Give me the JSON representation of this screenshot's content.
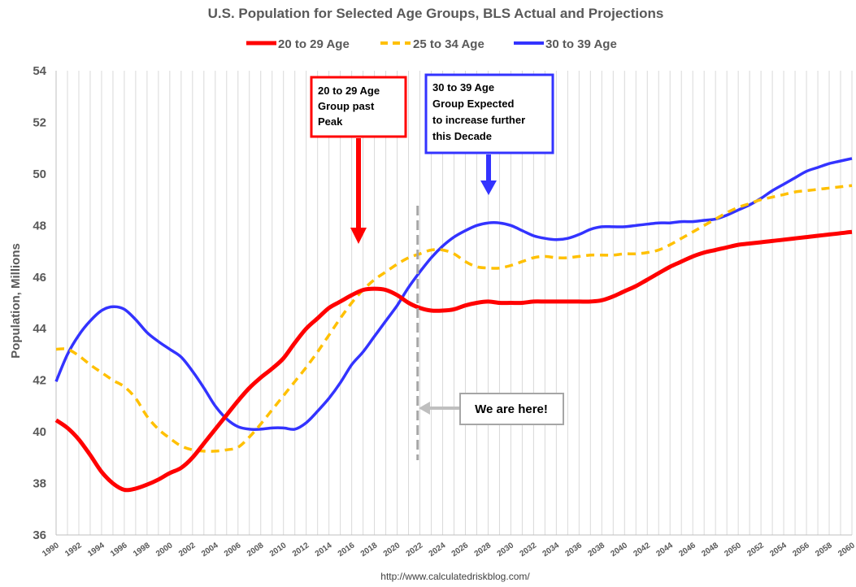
{
  "chart_data": {
    "type": "line",
    "title": "U.S. Population for Selected Age Groups, BLS Actual and Projections",
    "ylabel": "Population, Millions",
    "xlabel": "",
    "source": "http://www.calculatedriskblog.com/",
    "ylim": [
      36,
      54
    ],
    "yticks": [
      "36",
      "38",
      "40",
      "42",
      "44",
      "46",
      "48",
      "50",
      "52",
      "54"
    ],
    "xlim": [
      1990,
      2060
    ],
    "xticks": [
      "1990",
      "1992",
      "1994",
      "1996",
      "1998",
      "2000",
      "2002",
      "2004",
      "2006",
      "2008",
      "2010",
      "2012",
      "2014",
      "2016",
      "2018",
      "2020",
      "2022",
      "2024",
      "2026",
      "2028",
      "2030",
      "2032",
      "2034",
      "2036",
      "2038",
      "2040",
      "2042",
      "2044",
      "2046",
      "2048",
      "2050",
      "2052",
      "2054",
      "2056",
      "2058",
      "2060"
    ],
    "grid": "vertical",
    "legend_position": "top",
    "series": [
      {
        "name": "20 to 29 Age",
        "color": "#ff0000",
        "style": "solid",
        "x": [
          1990,
          1991,
          1992,
          1993,
          1994,
          1995,
          1996,
          1997,
          1998,
          1999,
          2000,
          2001,
          2002,
          2003,
          2004,
          2005,
          2006,
          2007,
          2008,
          2009,
          2010,
          2011,
          2012,
          2013,
          2014,
          2015,
          2016,
          2017,
          2018,
          2019,
          2020,
          2021,
          2022,
          2023,
          2024,
          2025,
          2026,
          2027,
          2028,
          2029,
          2030,
          2031,
          2032,
          2033,
          2034,
          2035,
          2036,
          2037,
          2038,
          2039,
          2040,
          2041,
          2042,
          2043,
          2044,
          2045,
          2046,
          2047,
          2048,
          2049,
          2050,
          2051,
          2052,
          2053,
          2054,
          2055,
          2056,
          2057,
          2058,
          2059,
          2060
        ],
        "values": [
          40.45,
          40.15,
          39.7,
          39.1,
          38.45,
          38.0,
          37.75,
          37.8,
          37.95,
          38.15,
          38.4,
          38.6,
          39.0,
          39.55,
          40.1,
          40.65,
          41.2,
          41.7,
          42.1,
          42.45,
          42.85,
          43.45,
          44.0,
          44.4,
          44.8,
          45.05,
          45.3,
          45.5,
          45.55,
          45.5,
          45.3,
          45.0,
          44.8,
          44.7,
          44.7,
          44.75,
          44.9,
          45.0,
          45.05,
          45.0,
          45.0,
          45.0,
          45.05,
          45.05,
          45.05,
          45.05,
          45.05,
          45.05,
          45.1,
          45.25,
          45.45,
          45.65,
          45.9,
          46.15,
          46.4,
          46.6,
          46.8,
          46.95,
          47.05,
          47.15,
          47.25,
          47.3,
          47.35,
          47.4,
          47.45,
          47.5,
          47.55,
          47.6,
          47.65,
          47.7,
          47.75
        ]
      },
      {
        "name": "25 to 34 Age",
        "color": "#ffc000",
        "style": "dashed",
        "x": [
          1990,
          1991,
          1992,
          1993,
          1994,
          1995,
          1996,
          1997,
          1998,
          1999,
          2000,
          2001,
          2002,
          2003,
          2004,
          2005,
          2006,
          2007,
          2008,
          2009,
          2010,
          2011,
          2012,
          2013,
          2014,
          2015,
          2016,
          2017,
          2018,
          2019,
          2020,
          2021,
          2022,
          2023,
          2024,
          2025,
          2026,
          2027,
          2028,
          2029,
          2030,
          2031,
          2032,
          2033,
          2034,
          2035,
          2036,
          2037,
          2038,
          2039,
          2040,
          2041,
          2042,
          2043,
          2044,
          2045,
          2046,
          2047,
          2048,
          2049,
          2050,
          2051,
          2052,
          2053,
          2054,
          2055,
          2056,
          2057,
          2058,
          2059,
          2060
        ],
        "values": [
          43.2,
          43.2,
          42.95,
          42.6,
          42.3,
          42.0,
          41.75,
          41.3,
          40.6,
          40.1,
          39.75,
          39.45,
          39.3,
          39.25,
          39.25,
          39.3,
          39.4,
          39.8,
          40.3,
          40.85,
          41.4,
          41.95,
          42.5,
          43.1,
          43.75,
          44.4,
          45.0,
          45.5,
          45.9,
          46.2,
          46.5,
          46.75,
          46.9,
          47.05,
          47.05,
          46.9,
          46.6,
          46.4,
          46.35,
          46.35,
          46.45,
          46.6,
          46.75,
          46.8,
          46.75,
          46.75,
          46.8,
          46.85,
          46.85,
          46.85,
          46.9,
          46.9,
          46.95,
          47.05,
          47.25,
          47.5,
          47.75,
          48.0,
          48.25,
          48.5,
          48.7,
          48.85,
          49.0,
          49.1,
          49.2,
          49.3,
          49.35,
          49.4,
          49.45,
          49.5,
          49.55
        ]
      },
      {
        "name": "30 to 39 Age",
        "color": "#3333ff",
        "style": "solid",
        "x": [
          1990,
          1991,
          1992,
          1993,
          1994,
          1995,
          1996,
          1997,
          1998,
          1999,
          2000,
          2001,
          2002,
          2003,
          2004,
          2005,
          2006,
          2007,
          2008,
          2009,
          2010,
          2011,
          2012,
          2013,
          2014,
          2015,
          2016,
          2017,
          2018,
          2019,
          2020,
          2021,
          2022,
          2023,
          2024,
          2025,
          2026,
          2027,
          2028,
          2029,
          2030,
          2031,
          2032,
          2033,
          2034,
          2035,
          2036,
          2037,
          2038,
          2039,
          2040,
          2041,
          2042,
          2043,
          2044,
          2045,
          2046,
          2047,
          2048,
          2049,
          2050,
          2051,
          2052,
          2053,
          2054,
          2055,
          2056,
          2057,
          2058,
          2059,
          2060
        ],
        "values": [
          41.95,
          43.0,
          43.75,
          44.3,
          44.7,
          44.85,
          44.75,
          44.35,
          43.85,
          43.5,
          43.2,
          42.9,
          42.35,
          41.7,
          41.0,
          40.5,
          40.2,
          40.1,
          40.1,
          40.15,
          40.15,
          40.1,
          40.35,
          40.8,
          41.3,
          41.9,
          42.6,
          43.1,
          43.7,
          44.3,
          44.9,
          45.6,
          46.2,
          46.75,
          47.2,
          47.55,
          47.8,
          48.0,
          48.1,
          48.1,
          48.0,
          47.8,
          47.6,
          47.5,
          47.45,
          47.5,
          47.65,
          47.85,
          47.95,
          47.95,
          47.95,
          48.0,
          48.05,
          48.1,
          48.1,
          48.15,
          48.15,
          48.2,
          48.25,
          48.4,
          48.6,
          48.8,
          49.05,
          49.35,
          49.6,
          49.85,
          50.1,
          50.25,
          50.4,
          50.5,
          50.6
        ]
      }
    ],
    "annotations": [
      {
        "lines": [
          "20 to 29 Age",
          "Group past",
          "Peak"
        ],
        "color": "#ff0000"
      },
      {
        "lines": [
          "30 to 39 Age",
          "Group Expected",
          "to increase further",
          "this Decade"
        ],
        "color": "#3333ff"
      },
      {
        "lines": [
          "We are here!"
        ],
        "color": "#a6a6a6"
      }
    ],
    "marker_line_year": 2021.8
  }
}
